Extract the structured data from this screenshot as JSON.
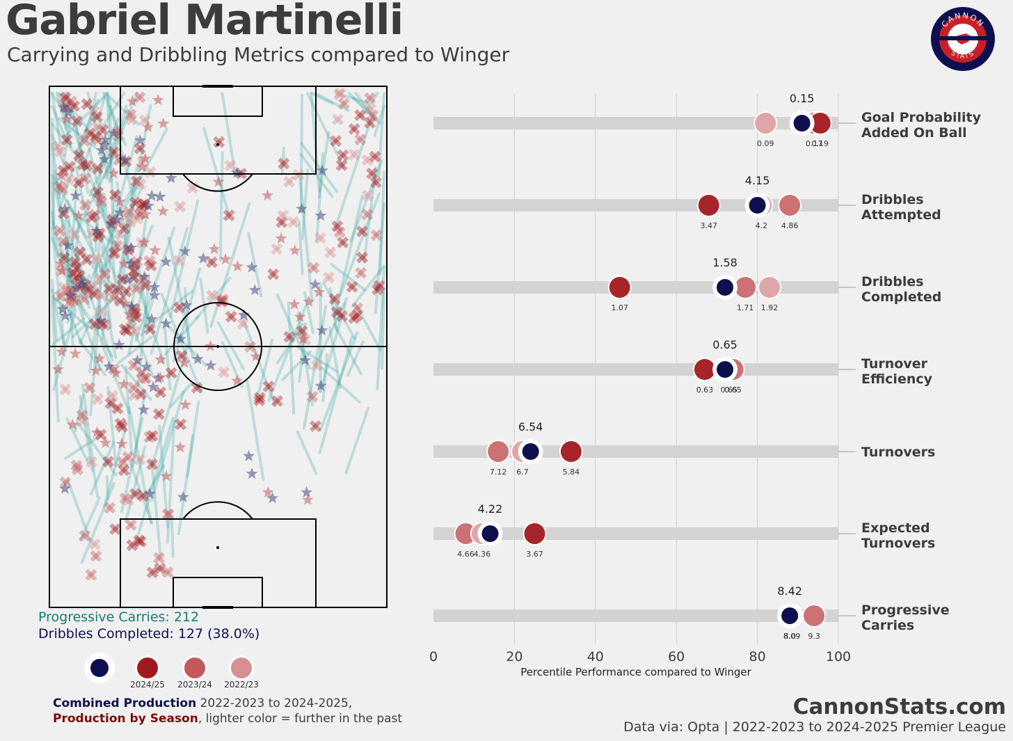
{
  "header": {
    "title": "Gabriel Martinelli",
    "subtitle": "Carrying and Dribbling Metrics compared to Winger"
  },
  "logo": {
    "text_top": "CANNON",
    "text_bottom": "STATS"
  },
  "pitch_stats": {
    "progressive_carries": "Progressive Carries: 212",
    "dribbles_completed": "Dribbles Completed: 127 (38.0%)"
  },
  "legend": {
    "items": [
      {
        "label": "",
        "color": "#0d0f4e"
      },
      {
        "label": "2024/25",
        "color": "#a1191f"
      },
      {
        "label": "2023/24",
        "color": "#c3595c"
      },
      {
        "label": "2022/23",
        "color": "#d69092"
      }
    ]
  },
  "footer": {
    "combined_bold": "Combined Production",
    "combined_rest": " 2022-2023 to 2024-2025,",
    "season_bold": "Production by Season",
    "season_rest": ", lighter color = further in the past",
    "site": "CannonStats.com",
    "source": "Data via: Opta | 2022-2023 to 2024-2025 Premier League"
  },
  "colors": {
    "combined": "#0d0f4e",
    "s2425": "#a1191f",
    "s2324": "#c3595c",
    "s2223": "#d69092",
    "carry": "#3aa7a3",
    "background": "#f0f0f0"
  },
  "chart_data": {
    "type": "scatter",
    "xlabel": "Percentile Performance compared to Winger",
    "xlim": [
      0,
      100
    ],
    "xticks": [
      0,
      20,
      40,
      60,
      80,
      100
    ],
    "grid": true,
    "metrics": [
      {
        "name": "Goal Probability\nAdded On Ball",
        "combined": {
          "pct": 91,
          "label": "0.15"
        },
        "seasons": [
          {
            "season": "2022/23",
            "pct": 82,
            "label": "0.09"
          },
          {
            "season": "2023/24",
            "pct": 94,
            "label": "0.17"
          },
          {
            "season": "2024/25",
            "pct": 95.5,
            "label": "0.19"
          }
        ]
      },
      {
        "name": "Dribbles\nAttempted",
        "combined": {
          "pct": 80,
          "label": "4.15"
        },
        "seasons": [
          {
            "season": "2024/25",
            "pct": 68,
            "label": "3.47"
          },
          {
            "season": "2022/23",
            "pct": 81,
            "label": "4.2"
          },
          {
            "season": "2023/24",
            "pct": 88,
            "label": "4.86"
          }
        ]
      },
      {
        "name": "Dribbles\nCompleted",
        "combined": {
          "pct": 72,
          "label": "1.58"
        },
        "seasons": [
          {
            "season": "2024/25",
            "pct": 46,
            "label": "1.07"
          },
          {
            "season": "2023/24",
            "pct": 77,
            "label": "1.71"
          },
          {
            "season": "2022/23",
            "pct": 83,
            "label": "1.92"
          }
        ]
      },
      {
        "name": "Turnover\nEfficiency",
        "combined": {
          "pct": 72,
          "label": "0.65"
        },
        "seasons": [
          {
            "season": "2024/25",
            "pct": 67,
            "label": "0.63"
          },
          {
            "season": "2022/23",
            "pct": 73,
            "label": "0.65"
          },
          {
            "season": "2023/24",
            "pct": 74,
            "label": "0.65"
          }
        ]
      },
      {
        "name": "Turnovers",
        "combined": {
          "pct": 24,
          "label": "6.54"
        },
        "seasons": [
          {
            "season": "2023/24",
            "pct": 16,
            "label": "7.12"
          },
          {
            "season": "2022/23",
            "pct": 22,
            "label": "6.7"
          },
          {
            "season": "2024/25",
            "pct": 34,
            "label": "5.84"
          }
        ]
      },
      {
        "name": "Expected\nTurnovers",
        "combined": {
          "pct": 14,
          "label": "4.22"
        },
        "seasons": [
          {
            "season": "2023/24",
            "pct": 8,
            "label": "4.66"
          },
          {
            "season": "2022/23",
            "pct": 12,
            "label": "4.36"
          },
          {
            "season": "2024/25",
            "pct": 25,
            "label": "3.67"
          }
        ]
      },
      {
        "name": "Progressive\nCarries",
        "combined": {
          "pct": 88,
          "label": "8.42"
        },
        "seasons": [
          {
            "season": "2022/23",
            "pct": 88,
            "label": "8.0"
          },
          {
            "season": "2024/25",
            "pct": 88.5,
            "label": "8.09"
          },
          {
            "season": "2023/24",
            "pct": 94,
            "label": "9.3"
          }
        ]
      }
    ]
  }
}
